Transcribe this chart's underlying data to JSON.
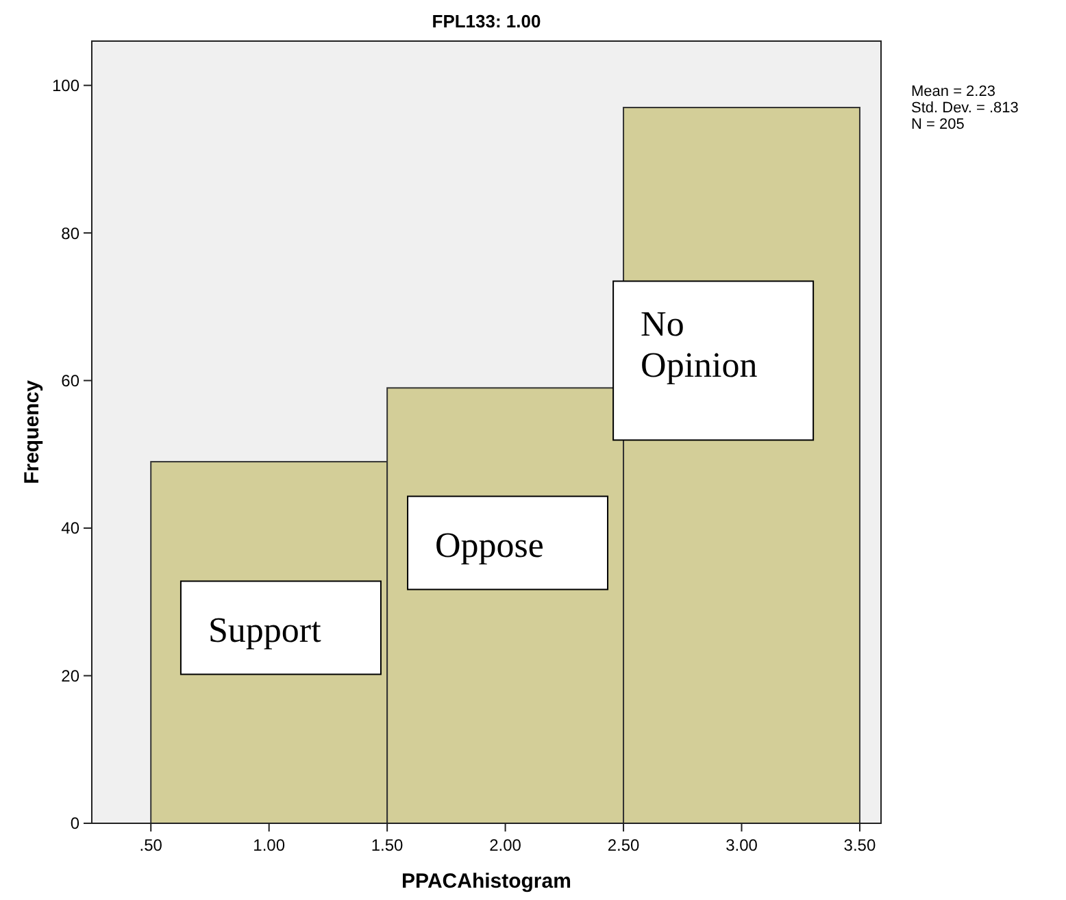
{
  "chart_data": {
    "type": "histogram",
    "title": "FPL133: 1.00",
    "xlabel": "PPACAhistogram",
    "ylabel": "Frequency",
    "bins": [
      0.5,
      1.5,
      2.5,
      3.5
    ],
    "values": [
      49,
      59,
      97
    ],
    "color": "#d3ce98",
    "xlim": [
      0.25,
      3.59
    ],
    "ylim": [
      0,
      106
    ],
    "xticks": [
      {
        "value": 0.5,
        "label": ".50"
      },
      {
        "value": 1,
        "label": "1.00"
      },
      {
        "value": 1.5,
        "label": "1.50"
      },
      {
        "value": 2,
        "label": "2.00"
      },
      {
        "value": 2.5,
        "label": "2.50"
      },
      {
        "value": 3,
        "label": "3.00"
      },
      {
        "value": 3.5,
        "label": "3.50"
      }
    ],
    "yticks": [
      0,
      20,
      40,
      60,
      80,
      100
    ],
    "grid": false,
    "annotations": [
      "Mean = 2.23",
      "Std. Dev. = .813",
      "N = 205",
      "Support",
      "Oppose",
      "No Opinion"
    ]
  }
}
